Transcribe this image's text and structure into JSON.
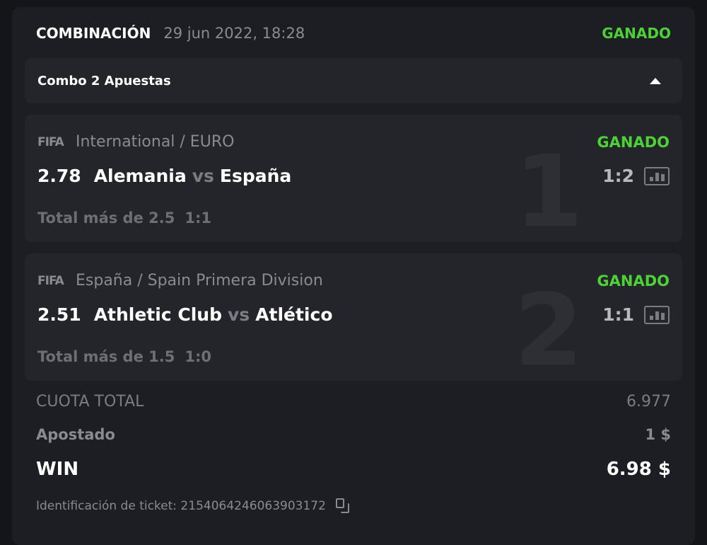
{
  "header": {
    "title": "COMBINACIÓN",
    "datetime": "29 jun 2022, 18:28",
    "status": "GANADO"
  },
  "combo": {
    "label": "Combo 2 Apuestas",
    "icon": "caret-up-icon"
  },
  "legs": [
    {
      "number": "1",
      "logo": "FIFA",
      "league": "International / EURO",
      "status": "GANADO",
      "odds": "2.78",
      "home": "Alemania",
      "vs": "vs",
      "away": "España",
      "score": "1:2",
      "market": "Total más de 2.5",
      "market_score": "1:1"
    },
    {
      "number": "2",
      "logo": "FIFA",
      "league": "España / Spain Primera Division",
      "status": "GANADO",
      "odds": "2.51",
      "home": "Athletic Club",
      "vs": "vs",
      "away": "Atlético",
      "score": "1:1",
      "market": "Total más de 1.5",
      "market_score": "1:0"
    }
  ],
  "summary": {
    "total_odds_label": "CUOTA TOTAL",
    "total_odds": "6.977",
    "stake_label": "Apostado",
    "stake": "1 $",
    "win_label": "WIN",
    "win": "6.98 $"
  },
  "ticket": {
    "label": "Identificación de ticket: 2154064246063903172"
  },
  "colors": {
    "win": "#4cd137",
    "background": "#1d1e23",
    "panel": "#24252a"
  }
}
